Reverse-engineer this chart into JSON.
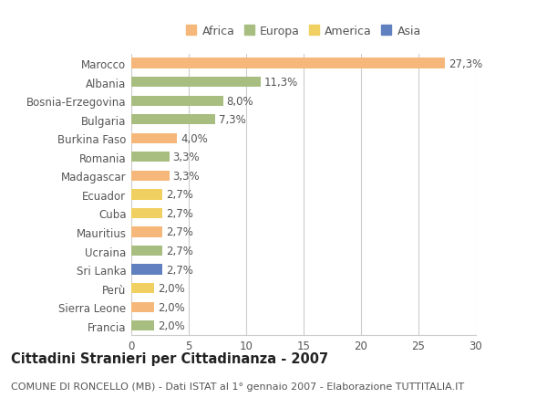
{
  "categories": [
    "Marocco",
    "Albania",
    "Bosnia-Erzegovina",
    "Bulgaria",
    "Burkina Faso",
    "Romania",
    "Madagascar",
    "Ecuador",
    "Cuba",
    "Mauritius",
    "Ucraina",
    "Sri Lanka",
    "Perù",
    "Sierra Leone",
    "Francia"
  ],
  "values": [
    27.3,
    11.3,
    8.0,
    7.3,
    4.0,
    3.3,
    3.3,
    2.7,
    2.7,
    2.7,
    2.7,
    2.7,
    2.0,
    2.0,
    2.0
  ],
  "labels": [
    "27,3%",
    "11,3%",
    "8,0%",
    "7,3%",
    "4,0%",
    "3,3%",
    "3,3%",
    "2,7%",
    "2,7%",
    "2,7%",
    "2,7%",
    "2,7%",
    "2,0%",
    "2,0%",
    "2,0%"
  ],
  "continents": [
    "Africa",
    "Europa",
    "Europa",
    "Europa",
    "Africa",
    "Europa",
    "Africa",
    "America",
    "America",
    "Africa",
    "Europa",
    "Asia",
    "America",
    "Africa",
    "Europa"
  ],
  "continent_colors": {
    "Africa": "#F5B87A",
    "Europa": "#A8BE80",
    "America": "#F0D060",
    "Asia": "#6080C0"
  },
  "legend_items": [
    "Africa",
    "Europa",
    "America",
    "Asia"
  ],
  "legend_colors": [
    "#F5B87A",
    "#A8BE80",
    "#F0D060",
    "#6080C0"
  ],
  "xlim": [
    0,
    30
  ],
  "xticks": [
    0,
    5,
    10,
    15,
    20,
    25,
    30
  ],
  "title": "Cittadini Stranieri per Cittadinanza - 2007",
  "subtitle": "COMUNE DI RONCELLO (MB) - Dati ISTAT al 1° gennaio 2007 - Elaborazione TUTTITALIA.IT",
  "bg_color": "#ffffff",
  "bar_height": 0.55,
  "label_fontsize": 8.5,
  "tick_fontsize": 8.5,
  "title_fontsize": 10.5,
  "subtitle_fontsize": 8.0
}
